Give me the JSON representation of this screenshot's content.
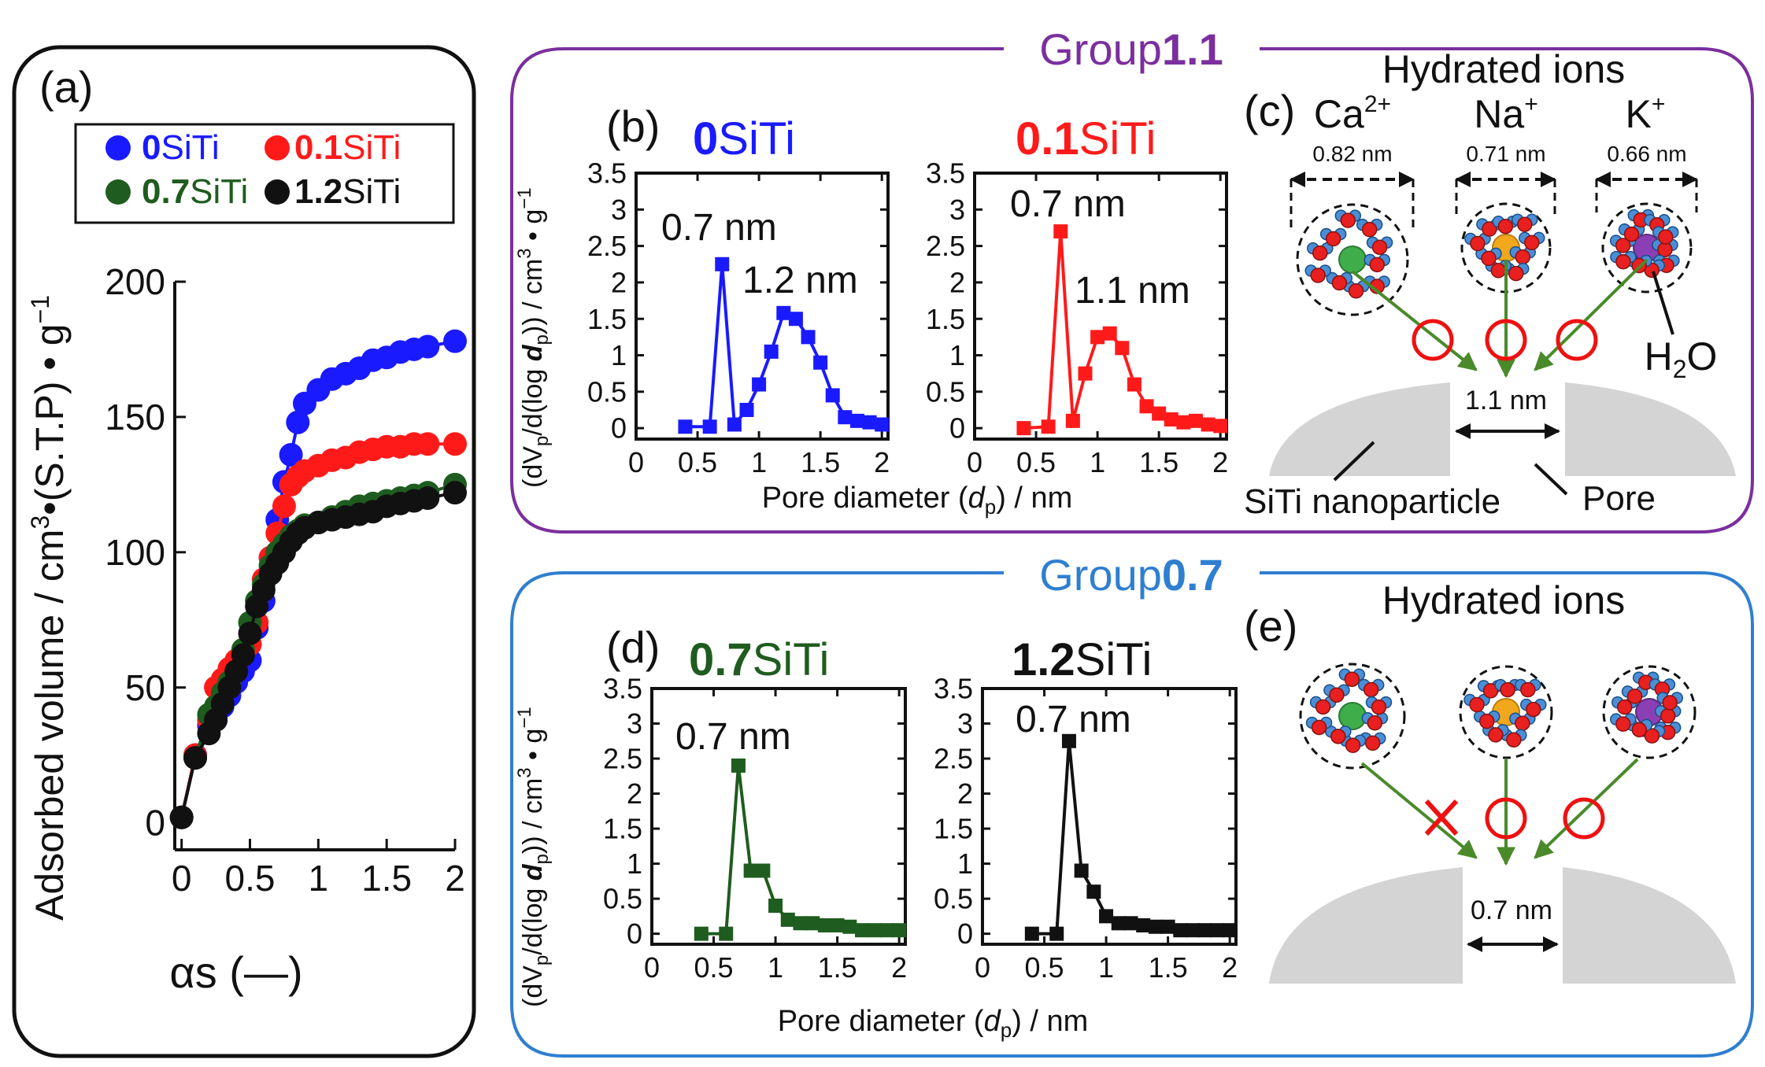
{
  "colors": {
    "blue": "#1a1aff",
    "red": "#ff1a1a",
    "green": "#1f5c1f",
    "black": "#111111",
    "purple": "#7b2f9e",
    "groupblue": "#2f7fd0",
    "arrow": "#4a8a2a",
    "gray": "#d4d4d4"
  },
  "panels": {
    "a": "(a)",
    "b": "(b)",
    "c": "(c)",
    "d": "(d)",
    "e": "(e)"
  },
  "groups": {
    "g1_prefix": "Group",
    "g1_bold": "1.1",
    "g2_prefix": "Group",
    "g2_bold": "0.7"
  },
  "legend": {
    "s0_bold": "0",
    "s0_rest": "SiTi",
    "s1_bold": "0.1",
    "s1_rest": "SiTi",
    "s7_bold": "0.7",
    "s7_rest": "SiTi",
    "s12_bold": "1.2",
    "s12_rest": "SiTi"
  },
  "subtitles": {
    "b_bold": "0",
    "b_rest": "SiTi",
    "b2_bold": "0.1",
    "b2_rest": "SiTi",
    "d_bold": "0.7",
    "d_rest": "SiTi",
    "d2_bold": "1.2",
    "d2_rest": "SiTi"
  },
  "annotations": {
    "b1_a": "0.7 nm",
    "b1_b": "1.2 nm",
    "b2_a": "0.7 nm",
    "b2_b": "1.1 nm",
    "d1_a": "0.7 nm",
    "d2_a": "0.7 nm"
  },
  "axis_labels": {
    "a_y_main": "Adsorbed volume / cm",
    "a_y_sup": "3",
    "a_y_mid": "•(S.T.P) • g",
    "a_y_sup2": "−1",
    "a_x": "αs (—)",
    "psd_y_a": "(dV",
    "psd_y_sub1": "p",
    "psd_y_b": "/d(log ",
    "psd_y_d": "d",
    "psd_y_sub2": "p",
    "psd_y_c": ")) / cm",
    "psd_y_sup": "3",
    "psd_y_e": " • g",
    "psd_y_sup2": "−1",
    "psd_x_a": "Pore diameter (",
    "psd_x_d": "d",
    "psd_x_sub": "p",
    "psd_x_b": ") / nm"
  },
  "schematic": {
    "title_c": "Hydrated ions",
    "title_e": "Hydrated ions",
    "ca": "Ca",
    "ca_sup": "2+",
    "ca_size": "0.82 nm",
    "na": "Na",
    "na_sup": "+",
    "na_size": "0.71 nm",
    "k": "K",
    "k_sup": "+",
    "k_size": "0.66 nm",
    "h2o_h": "H",
    "h2o_sub": "2",
    "h2o_o": "O",
    "pore_c": "1.1 nm",
    "pore_e": "0.7 nm",
    "particle": "SiTi nanoparticle",
    "pore": "Pore"
  },
  "chart_data": [
    {
      "id": "a",
      "type": "scatter",
      "title": "",
      "xlabel": "αs (—)",
      "ylabel": "Adsorbed volume / cm3•(S.T.P) • g−1",
      "xlim": [
        -0.05,
        2.0
      ],
      "ylim": [
        -10,
        200
      ],
      "xticks": [
        0,
        0.5,
        1,
        1.5,
        2
      ],
      "xtick_labels": [
        "0",
        "0.5",
        "1",
        "1.5",
        "2"
      ],
      "yticks": [
        0,
        50,
        100,
        150,
        200
      ],
      "ytick_labels": [
        "0",
        "50",
        "100",
        "150",
        "200"
      ],
      "series": [
        {
          "name": "0SiTi",
          "color": "blue",
          "x": [
            0,
            0.1,
            0.2,
            0.25,
            0.3,
            0.35,
            0.4,
            0.45,
            0.5,
            0.55,
            0.6,
            0.65,
            0.7,
            0.75,
            0.8,
            0.85,
            0.9,
            1.0,
            1.1,
            1.2,
            1.3,
            1.4,
            1.5,
            1.6,
            1.7,
            1.8,
            2.0
          ],
          "y": [
            2,
            25,
            36,
            38,
            43,
            47,
            52,
            56,
            60,
            72,
            82,
            98,
            112,
            126,
            136,
            148,
            155,
            160,
            164,
            166,
            168,
            171,
            172,
            174,
            175,
            176,
            178
          ]
        },
        {
          "name": "0.1SiTi",
          "color": "red",
          "x": [
            0,
            0.1,
            0.2,
            0.25,
            0.3,
            0.35,
            0.4,
            0.45,
            0.5,
            0.55,
            0.6,
            0.65,
            0.7,
            0.75,
            0.8,
            0.85,
            0.9,
            1.0,
            1.1,
            1.2,
            1.3,
            1.4,
            1.5,
            1.6,
            1.7,
            1.8,
            2.0
          ],
          "y": [
            2,
            25,
            38,
            50,
            53,
            57,
            60,
            64,
            66,
            74,
            90,
            98,
            107,
            117,
            125,
            128,
            130,
            132,
            134,
            135,
            137,
            138,
            139,
            139,
            140,
            140,
            140
          ]
        },
        {
          "name": "0.7SiTi",
          "color": "green",
          "x": [
            0,
            0.1,
            0.2,
            0.25,
            0.3,
            0.35,
            0.4,
            0.45,
            0.5,
            0.55,
            0.6,
            0.65,
            0.7,
            0.75,
            0.8,
            0.85,
            0.9,
            1.0,
            1.1,
            1.2,
            1.3,
            1.4,
            1.5,
            1.6,
            1.7,
            1.8,
            2.0
          ],
          "y": [
            2,
            24,
            40,
            43,
            48,
            52,
            56,
            64,
            74,
            82,
            88,
            95,
            100,
            103,
            106,
            108,
            110,
            111,
            113,
            115,
            117,
            118,
            119,
            120,
            121,
            122,
            125
          ]
        },
        {
          "name": "1.2SiTi",
          "color": "black",
          "x": [
            0,
            0.1,
            0.2,
            0.25,
            0.3,
            0.35,
            0.4,
            0.45,
            0.5,
            0.55,
            0.6,
            0.65,
            0.7,
            0.75,
            0.8,
            0.85,
            0.9,
            1.0,
            1.1,
            1.2,
            1.3,
            1.4,
            1.5,
            1.6,
            1.7,
            1.8,
            2.0
          ],
          "y": [
            2,
            24,
            33,
            38,
            44,
            50,
            56,
            62,
            70,
            80,
            86,
            92,
            96,
            100,
            104,
            107,
            109,
            111,
            112,
            113,
            114,
            115,
            117,
            118,
            119,
            120,
            122
          ]
        }
      ]
    },
    {
      "id": "b1",
      "type": "line",
      "title": "0SiTi",
      "xlabel": "Pore diameter (dp) / nm",
      "ylabel": "(dVp/d(log dp)) / cm3 • g−1",
      "xlim": [
        0,
        2.05
      ],
      "ylim": [
        -0.15,
        3.5
      ],
      "xticks": [
        0,
        0.5,
        1,
        1.5,
        2
      ],
      "xtick_labels": [
        "0",
        "0.5",
        "1",
        "1.5",
        "2"
      ],
      "yticks": [
        0,
        0.5,
        1,
        1.5,
        2,
        2.5,
        3,
        3.5
      ],
      "ytick_labels": [
        "0",
        "0.5",
        "1",
        "1.5",
        "2",
        "2.5",
        "3",
        "3.5"
      ],
      "series": [
        {
          "name": "0SiTi",
          "color": "blue",
          "x": [
            0.4,
            0.6,
            0.7,
            0.8,
            0.9,
            1.0,
            1.1,
            1.2,
            1.3,
            1.4,
            1.5,
            1.6,
            1.7,
            1.8,
            1.9,
            2.0
          ],
          "y": [
            0.02,
            0.02,
            2.25,
            0.05,
            0.25,
            0.6,
            1.05,
            1.58,
            1.5,
            1.25,
            0.9,
            0.45,
            0.15,
            0.1,
            0.08,
            0.05
          ]
        }
      ]
    },
    {
      "id": "b2",
      "type": "line",
      "title": "0.1SiTi",
      "xlabel": "Pore diameter (dp) / nm",
      "ylabel": "(dVp/d(log dp)) / cm3 • g−1",
      "xlim": [
        0,
        2.05
      ],
      "ylim": [
        -0.15,
        3.5
      ],
      "xticks": [
        0,
        0.5,
        1,
        1.5,
        2
      ],
      "xtick_labels": [
        "0",
        "0.5",
        "1",
        "1.5",
        "2"
      ],
      "yticks": [
        0,
        0.5,
        1,
        1.5,
        2,
        2.5,
        3,
        3.5
      ],
      "ytick_labels": [
        "0",
        "0.5",
        "1",
        "1.5",
        "2",
        "2.5",
        "3",
        "3.5"
      ],
      "series": [
        {
          "name": "0.1SiTi",
          "color": "red",
          "x": [
            0.4,
            0.6,
            0.7,
            0.8,
            0.9,
            1.0,
            1.1,
            1.2,
            1.3,
            1.4,
            1.5,
            1.6,
            1.7,
            1.8,
            1.9,
            2.0
          ],
          "y": [
            0.0,
            0.02,
            2.7,
            0.1,
            0.75,
            1.25,
            1.3,
            1.1,
            0.6,
            0.3,
            0.2,
            0.12,
            0.08,
            0.1,
            0.05,
            0.03
          ]
        }
      ]
    },
    {
      "id": "d1",
      "type": "line",
      "title": "0.7SiTi",
      "xlabel": "Pore diameter (dp) / nm",
      "ylabel": "(dVp/d(log dp)) / cm3 • g−1",
      "xlim": [
        0,
        2.05
      ],
      "ylim": [
        -0.15,
        3.5
      ],
      "xticks": [
        0,
        0.5,
        1,
        1.5,
        2
      ],
      "xtick_labels": [
        "0",
        "0.5",
        "1",
        "1.5",
        "2"
      ],
      "yticks": [
        0,
        0.5,
        1,
        1.5,
        2,
        2.5,
        3,
        3.5
      ],
      "ytick_labels": [
        "0",
        "0.5",
        "1",
        "1.5",
        "2",
        "2.5",
        "3",
        "3.5"
      ],
      "series": [
        {
          "name": "0.7SiTi",
          "color": "green",
          "x": [
            0.4,
            0.6,
            0.7,
            0.8,
            0.9,
            1.0,
            1.1,
            1.2,
            1.3,
            1.4,
            1.5,
            1.6,
            1.7,
            1.8,
            1.9,
            2.0
          ],
          "y": [
            0.0,
            0.0,
            2.4,
            0.9,
            0.9,
            0.4,
            0.2,
            0.15,
            0.15,
            0.12,
            0.12,
            0.1,
            0.05,
            0.05,
            0.05,
            0.05
          ]
        }
      ]
    },
    {
      "id": "d2",
      "type": "line",
      "title": "1.2SiTi",
      "xlabel": "Pore diameter (dp) / nm",
      "ylabel": "(dVp/d(log dp)) / cm3 • g−1",
      "xlim": [
        0,
        2.05
      ],
      "ylim": [
        -0.15,
        3.5
      ],
      "xticks": [
        0,
        0.5,
        1,
        1.5,
        2
      ],
      "xtick_labels": [
        "0",
        "0.5",
        "1",
        "1.5",
        "2"
      ],
      "yticks": [
        0,
        0.5,
        1,
        1.5,
        2,
        2.5,
        3,
        3.5
      ],
      "ytick_labels": [
        "0",
        "0.5",
        "1",
        "1.5",
        "2",
        "2.5",
        "3",
        "3.5"
      ],
      "series": [
        {
          "name": "1.2SiTi",
          "color": "black",
          "x": [
            0.4,
            0.6,
            0.7,
            0.8,
            0.9,
            1.0,
            1.1,
            1.2,
            1.3,
            1.4,
            1.5,
            1.6,
            1.7,
            1.8,
            1.9,
            2.0
          ],
          "y": [
            0.0,
            0.0,
            2.75,
            0.9,
            0.6,
            0.25,
            0.15,
            0.15,
            0.12,
            0.1,
            0.1,
            0.05,
            0.05,
            0.05,
            0.05,
            0.05
          ]
        }
      ]
    }
  ]
}
